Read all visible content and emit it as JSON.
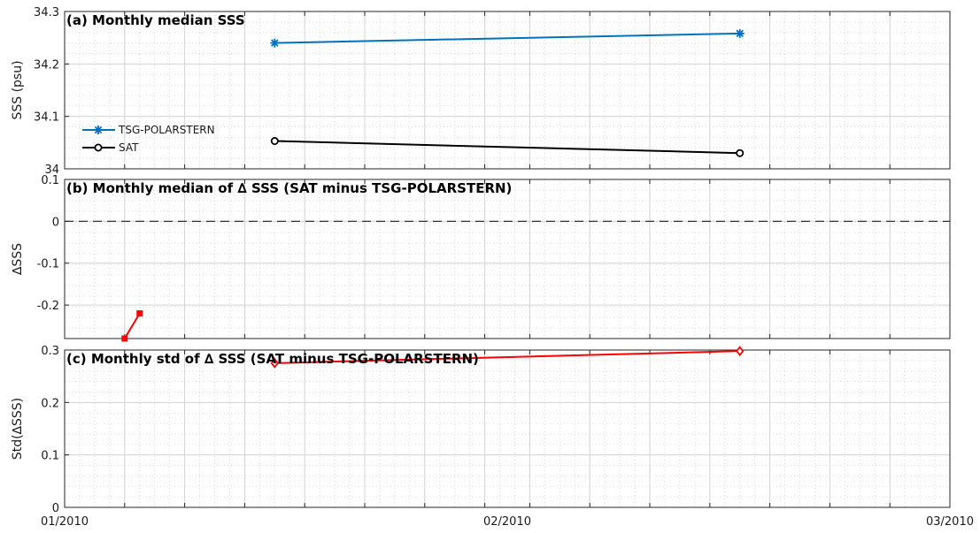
{
  "chart_data": [
    {
      "type": "line",
      "title": "(a) Monthly median SSS",
      "ylabel": "SSS (psu)",
      "ylim": [
        34,
        34.3
      ],
      "yticks": [
        "34",
        "34.1",
        "34.2",
        "34.3"
      ],
      "xticks": [
        "01/2010",
        "02/2010",
        "03/2010"
      ],
      "grid": true,
      "legend": "left",
      "series": [
        {
          "name": "TSG-POLARSTERN",
          "color": "#0072BD",
          "marker": "asterisk",
          "x": [
            "2010-01-15",
            "2010-02-15"
          ],
          "y": [
            34.24,
            34.258
          ]
        },
        {
          "name": "SAT",
          "color": "#000000",
          "marker": "circle",
          "x": [
            "2010-01-15",
            "2010-02-15"
          ],
          "y": [
            34.053,
            34.03
          ]
        }
      ]
    },
    {
      "type": "line",
      "title": "(b) Monthly median of ∆ SSS (SAT minus TSG-POLARSTERN)",
      "ylabel": "∆SSS",
      "ylim": [
        -0.28,
        0.1
      ],
      "yticks": [
        "0.1",
        "0",
        "-0.1",
        "-0.2"
      ],
      "reference_line": 0,
      "grid": true,
      "series": [
        {
          "color": "#FF0000",
          "marker": "square",
          "x": [
            "2010-01-05",
            "2010-01-06"
          ],
          "y": [
            -0.28,
            -0.22
          ]
        }
      ]
    },
    {
      "type": "line",
      "title": "(c) Monthly std of ∆ SSS (SAT minus TSG-POLARSTERN)",
      "ylabel": "Std(∆SSS)",
      "ylim": [
        0,
        0.3
      ],
      "yticks": [
        "0",
        "0.1",
        "0.2",
        "0.3"
      ],
      "grid": true,
      "series": [
        {
          "color": "#FF0000",
          "marker": "diamond",
          "x": [
            "2010-01-15",
            "2010-02-15"
          ],
          "y": [
            0.275,
            0.298
          ]
        }
      ]
    }
  ]
}
